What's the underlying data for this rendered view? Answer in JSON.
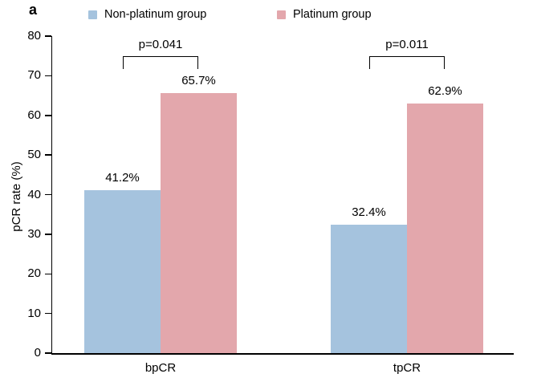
{
  "panel_label": "a",
  "legend": {
    "items": [
      {
        "label": "Non-platinum group",
        "color": "#a5c3de"
      },
      {
        "label": "Platinum group",
        "color": "#e3a7ac"
      }
    ]
  },
  "chart_data": {
    "type": "bar",
    "title": "",
    "xlabel": "",
    "ylabel": "pCR rate (%)",
    "categories": [
      "bpCR",
      "tpCR"
    ],
    "series": [
      {
        "name": "Non-platinum group",
        "color": "#a5c3de",
        "values": [
          41.2,
          32.4
        ]
      },
      {
        "name": "Platinum group",
        "color": "#e3a7ac",
        "values": [
          65.7,
          62.9
        ]
      }
    ],
    "value_labels": [
      [
        "41.2%",
        "65.7%"
      ],
      [
        "32.4%",
        "62.9%"
      ]
    ],
    "annotations": [
      {
        "category": "bpCR",
        "text": "p=0.041"
      },
      {
        "category": "tpCR",
        "text": "p=0.011"
      }
    ],
    "ylim": [
      0,
      80
    ],
    "ytick_step": 10,
    "grid": false,
    "legend_position": "top"
  }
}
